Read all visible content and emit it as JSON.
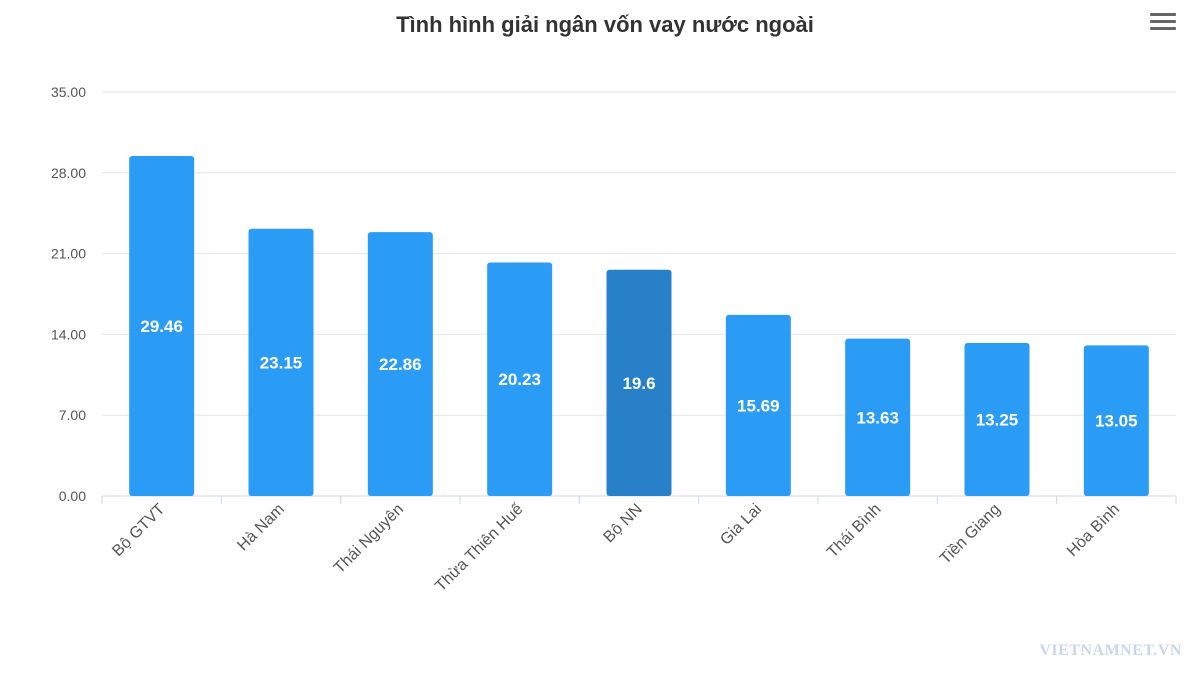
{
  "chart_data": {
    "type": "bar",
    "title": "Tình hình giải ngân vốn vay nước ngoài",
    "categories": [
      "Bộ GTVT",
      "Hà Nam",
      "Thái Nguyên",
      "Thừa Thiên Huế",
      "Bộ NN",
      "Gia Lai",
      "Thái Bình",
      "Tiền Giang",
      "Hòa Bình"
    ],
    "values": [
      29.46,
      23.15,
      22.86,
      20.23,
      19.6,
      15.69,
      13.63,
      13.25,
      13.05
    ],
    "value_labels": [
      "29.46",
      "23.15",
      "22.86",
      "20.23",
      "19.6",
      "15.69",
      "13.63",
      "13.25",
      "13.05"
    ],
    "yticks": [
      "0.00",
      "7.00",
      "14.00",
      "21.00",
      "28.00",
      "35.00"
    ],
    "ylim": [
      0,
      35
    ],
    "grid": true,
    "highlight_index": 4,
    "colors": {
      "bar": "#2b9cf6",
      "highlight": "#2780c8",
      "grid": "#e6e6e6",
      "axis": "#ccd6eb"
    }
  },
  "watermark": "VIETNAMNET.VN",
  "menu_icon": "hamburger-menu-icon"
}
